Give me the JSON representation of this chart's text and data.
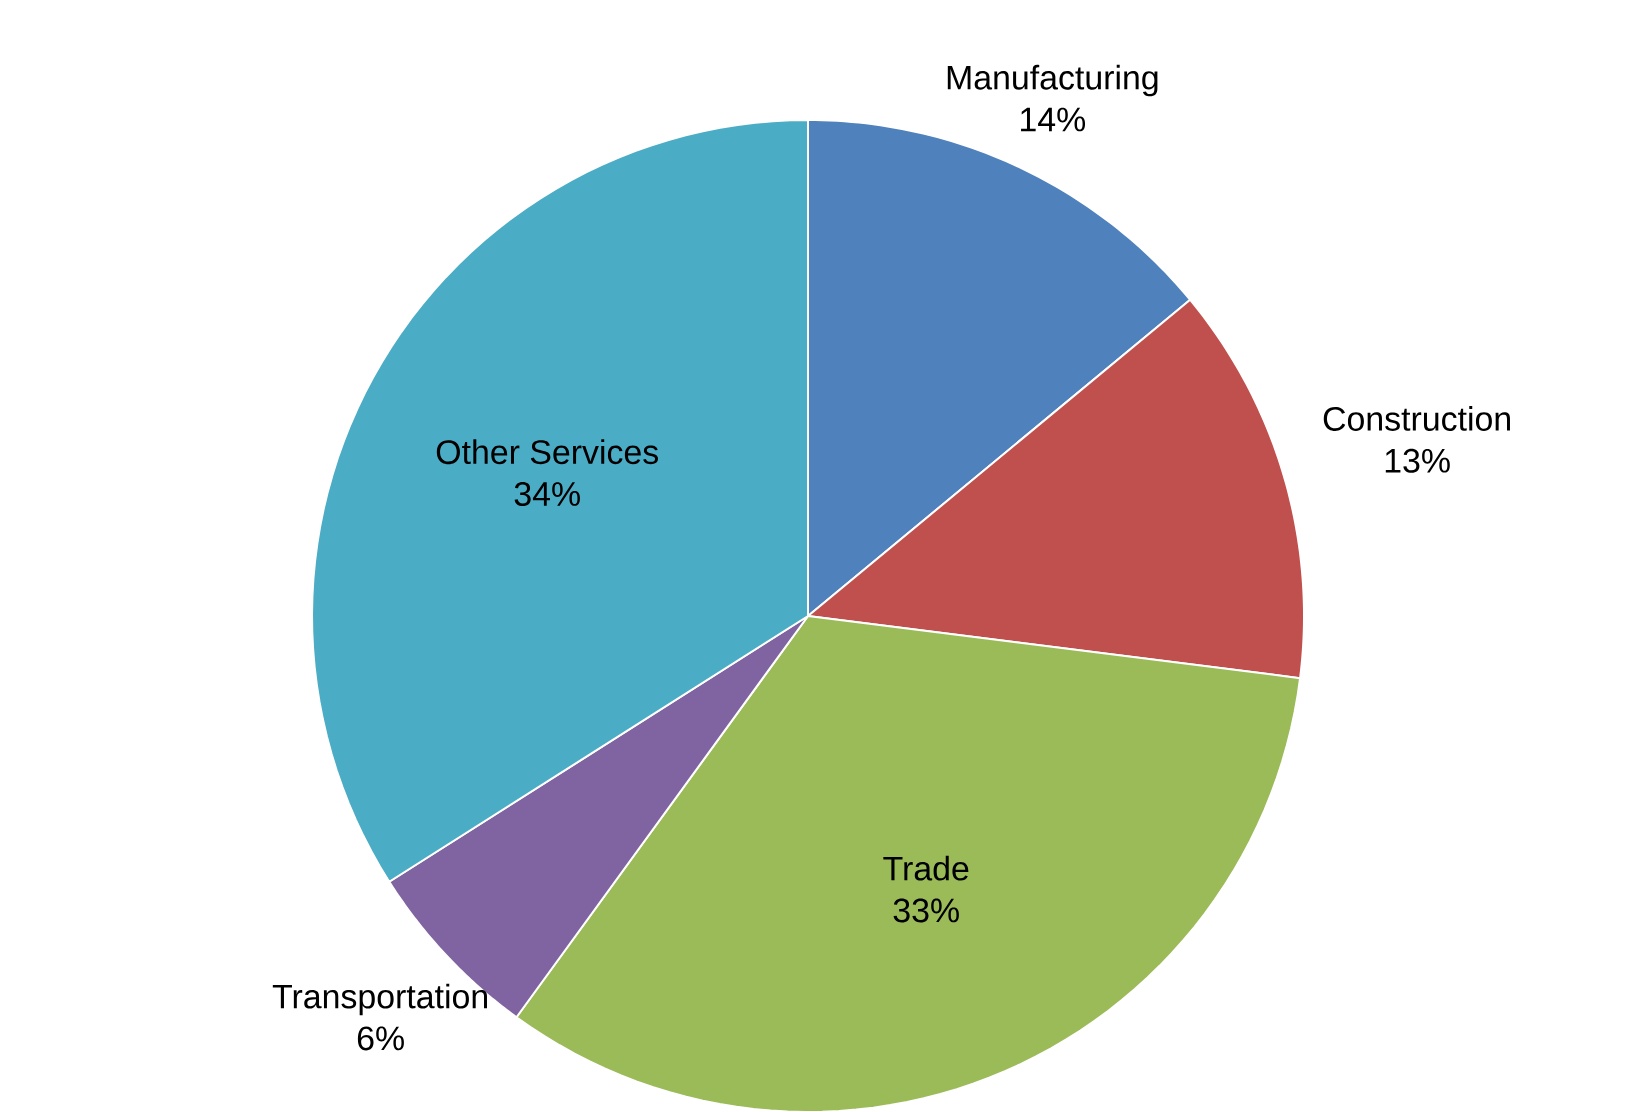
{
  "chart_data": {
    "type": "pie",
    "categories": [
      "Manufacturing",
      "Construction",
      "Trade",
      "Transportation",
      "Other Services"
    ],
    "values": [
      14,
      13,
      33,
      6,
      34
    ],
    "value_labels": [
      "14%",
      "13%",
      "33%",
      "6%",
      "34%"
    ],
    "colors": [
      "#4f81bd",
      "#c0504d",
      "#9bbb59",
      "#8064a2",
      "#4bacc6"
    ]
  }
}
